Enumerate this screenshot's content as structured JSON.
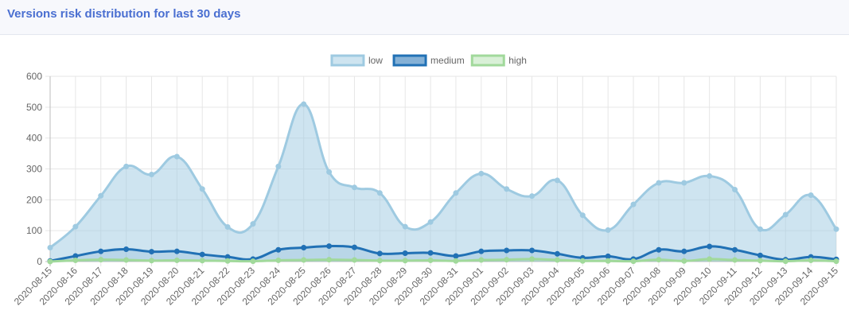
{
  "header": {
    "title": "Versions risk distribution for last 30 days"
  },
  "chart_data": {
    "type": "area",
    "x": [
      "2020-08-15",
      "2020-08-16",
      "2020-08-17",
      "2020-08-18",
      "2020-08-19",
      "2020-08-20",
      "2020-08-21",
      "2020-08-22",
      "2020-08-23",
      "2020-08-24",
      "2020-08-25",
      "2020-08-26",
      "2020-08-27",
      "2020-08-28",
      "2020-08-29",
      "2020-08-30",
      "2020-08-31",
      "2020-09-01",
      "2020-09-02",
      "2020-09-03",
      "2020-09-04",
      "2020-09-05",
      "2020-09-06",
      "2020-09-07",
      "2020-09-08",
      "2020-09-09",
      "2020-09-10",
      "2020-09-11",
      "2020-09-12",
      "2020-09-13",
      "2020-09-14",
      "2020-09-15"
    ],
    "ylim": [
      0,
      600
    ],
    "yticks": [
      0,
      100,
      200,
      300,
      400,
      500,
      600
    ],
    "grid": true,
    "legend_position": "top",
    "series": [
      {
        "name": "low",
        "color": "#9ecae1",
        "fill": "rgba(158,202,225,0.5)",
        "values": [
          45,
          113,
          213,
          308,
          282,
          340,
          235,
          112,
          122,
          308,
          510,
          290,
          240,
          222,
          113,
          128,
          222,
          285,
          235,
          212,
          263,
          150,
          102,
          185,
          255,
          255,
          277,
          233,
          105,
          152,
          215,
          105
        ]
      },
      {
        "name": "medium",
        "color": "#2171b5",
        "fill": "rgba(33,113,181,0.12)",
        "values": [
          2,
          18,
          33,
          40,
          32,
          33,
          23,
          15,
          8,
          38,
          45,
          50,
          46,
          26,
          27,
          28,
          18,
          33,
          36,
          36,
          25,
          12,
          17,
          8,
          38,
          33,
          49,
          38,
          20,
          6,
          15,
          7
        ]
      },
      {
        "name": "high",
        "color": "#a1d99b",
        "fill": "rgba(161,217,155,0.25)",
        "values": [
          0,
          4,
          6,
          5,
          3,
          4,
          3,
          2,
          1,
          4,
          5,
          6,
          5,
          3,
          3,
          4,
          2,
          5,
          6,
          8,
          5,
          2,
          2,
          1,
          6,
          2,
          8,
          5,
          3,
          1,
          4,
          1
        ]
      }
    ]
  }
}
